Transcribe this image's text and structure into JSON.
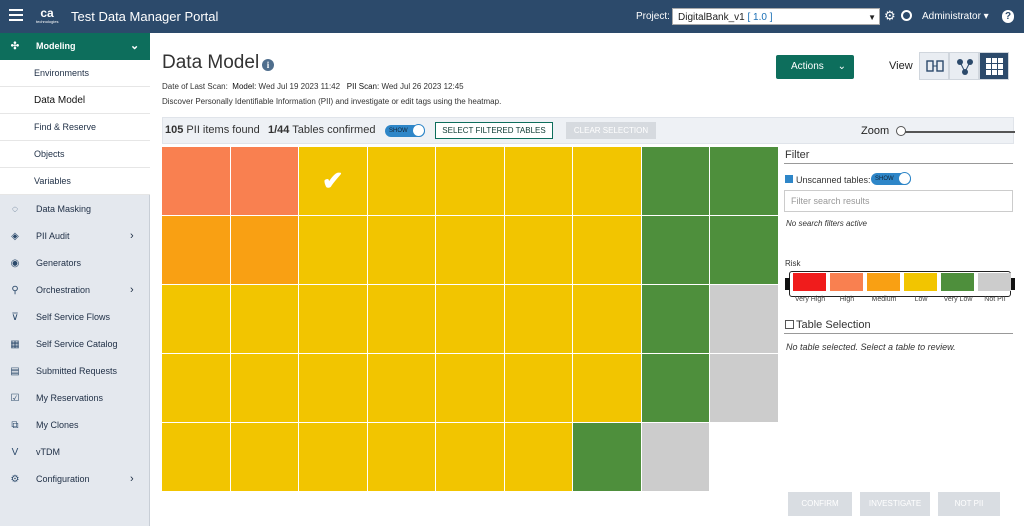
{
  "header": {
    "logo_text": "ca",
    "logo_sub": "technologies",
    "title": "Test Data Manager Portal",
    "project_label": "Project:",
    "project_value": "DigitalBank_v1",
    "project_version": "[ 1.0 ]",
    "user": "Administrator",
    "help": "?"
  },
  "sidebar": {
    "section": {
      "label": "Modeling",
      "icon": "modeling-icon"
    },
    "sub_items": [
      {
        "label": "Environments"
      },
      {
        "label": "Data Model",
        "selected": true
      },
      {
        "label": "Find & Reserve"
      },
      {
        "label": "Objects"
      },
      {
        "label": "Variables"
      }
    ],
    "items": [
      {
        "label": "Data Masking",
        "icon": "mask-icon",
        "chevron": false
      },
      {
        "label": "PII Audit",
        "icon": "audit-icon",
        "chevron": true
      },
      {
        "label": "Generators",
        "icon": "generator-icon",
        "chevron": false
      },
      {
        "label": "Orchestration",
        "icon": "orchestration-icon",
        "chevron": true
      },
      {
        "label": "Self Service Flows",
        "icon": "flow-icon",
        "chevron": false
      },
      {
        "label": "Self Service Catalog",
        "icon": "catalog-icon",
        "chevron": false
      },
      {
        "label": "Submitted Requests",
        "icon": "requests-icon",
        "chevron": false
      },
      {
        "label": "My Reservations",
        "icon": "reservations-icon",
        "chevron": false
      },
      {
        "label": "My Clones",
        "icon": "clones-icon",
        "chevron": false
      },
      {
        "label": "vTDM",
        "icon": "vtdm-icon",
        "chevron": false
      },
      {
        "label": "Configuration",
        "icon": "gear-icon",
        "chevron": true
      }
    ]
  },
  "main": {
    "title": "Data Model",
    "scan_prefix": "Date of Last Scan:",
    "model_label": "Model:",
    "model_date": "Wed Jul 19 2023 11:42",
    "pii_label": "PII Scan:",
    "pii_date": "Wed Jul 26 2023 12:45",
    "description": "Discover Personally Identifiable Information (PII) and investigate or edit tags using the heatmap.",
    "actions_label": "Actions",
    "view_label": "View"
  },
  "toolbar": {
    "pii_count": "105",
    "pii_suffix": "PII items found",
    "tables_confirmed": "1/44",
    "tables_suffix": "Tables confirmed",
    "show_toggle": "SHOW",
    "select_filtered": "SELECT FILTERED TABLES",
    "clear_selection": "CLEAR SELECTION",
    "zoom_label": "Zoom",
    "zoom_value": 0
  },
  "filter_panel": {
    "title": "Filter",
    "unscanned_label": "Unscanned tables:",
    "unscanned_toggle": "SHOW",
    "search_placeholder": "Filter search results",
    "no_filters": "No search filters active",
    "risk_label": "Risk",
    "risk_levels": [
      {
        "label": "Very High",
        "color": "#f01c1c"
      },
      {
        "label": "High",
        "color": "#f98050"
      },
      {
        "label": "Medium",
        "color": "#f9a013"
      },
      {
        "label": "Low",
        "color": "#f2c500"
      },
      {
        "label": "Very Low",
        "color": "#4e8f3c"
      },
      {
        "label": "Not PII",
        "color": "#cccccc"
      }
    ],
    "table_selection_title": "Table Selection",
    "no_table_selected": "No table selected. Select a table to review."
  },
  "heatmap": {
    "rows": [
      [
        "High",
        "High",
        "Low",
        "Low",
        "Low",
        "Low",
        "Low",
        "Very Low",
        "Very Low"
      ],
      [
        "Medium",
        "Medium",
        "Low",
        "Low",
        "Low",
        "Low",
        "Low",
        "Very Low",
        "Very Low"
      ],
      [
        "Low",
        "Low",
        "Low",
        "Low",
        "Low",
        "Low",
        "Low",
        "Very Low",
        "Not PII"
      ],
      [
        "Low",
        "Low",
        "Low",
        "Low",
        "Low",
        "Low",
        "Low",
        "Very Low",
        "Not PII"
      ],
      [
        "Low",
        "Low",
        "Low",
        "Low",
        "Low",
        "Low",
        "Very Low",
        "Not PII",
        ""
      ]
    ],
    "confirmed_cell": [
      0,
      2
    ]
  },
  "bottom_buttons": {
    "confirm": "CONFIRM",
    "investigate": "INVESTIGATE",
    "not_pii": "NOT PII"
  }
}
